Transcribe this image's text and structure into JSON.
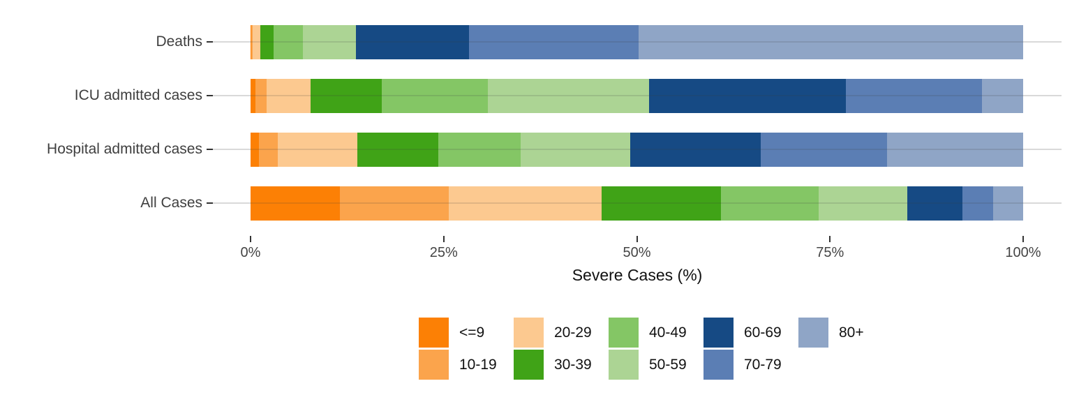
{
  "chart_data": {
    "type": "bar",
    "orientation": "horizontal",
    "stacked": true,
    "stack_total": 100,
    "title": "",
    "xlabel": "Severe Cases (%)",
    "ylabel": "",
    "xlim": [
      0,
      100
    ],
    "x_tick_labels": [
      "0%",
      "25%",
      "50%",
      "75%",
      "100%"
    ],
    "x_tick_values": [
      0,
      25,
      50,
      75,
      100
    ],
    "grid": "horizontal-category-lines",
    "legend_position": "bottom",
    "categories": [
      "Deaths",
      "ICU admitted cases",
      "Hospital admitted cases",
      "All Cases"
    ],
    "series": [
      {
        "name": "<=9",
        "color": "#FC8005",
        "values": [
          0.1,
          0.6,
          1.1,
          11.6
        ]
      },
      {
        "name": "10-19",
        "color": "#FBA44C",
        "values": [
          0.2,
          1.5,
          2.4,
          14.1
        ]
      },
      {
        "name": "20-29",
        "color": "#FCC990",
        "values": [
          1.0,
          5.7,
          10.3,
          19.7
        ]
      },
      {
        "name": "30-39",
        "color": "#40A317",
        "values": [
          1.7,
          9.2,
          10.5,
          15.5
        ]
      },
      {
        "name": "40-49",
        "color": "#84C665",
        "values": [
          3.8,
          13.7,
          10.7,
          12.6
        ]
      },
      {
        "name": "50-59",
        "color": "#ACD494",
        "values": [
          6.8,
          20.9,
          14.1,
          11.5
        ]
      },
      {
        "name": "60-69",
        "color": "#164A84",
        "values": [
          14.7,
          25.5,
          16.9,
          7.1
        ]
      },
      {
        "name": "70-79",
        "color": "#5B7EB4",
        "values": [
          21.9,
          17.6,
          16.4,
          4.0
        ]
      },
      {
        "name": "80+",
        "color": "#8FA5C6",
        "values": [
          49.8,
          5.3,
          17.6,
          3.9
        ]
      }
    ]
  },
  "layout_colors": {
    "background": "#ffffff",
    "gridline": "#d9d9d9",
    "axis_text": "#444444",
    "category_text": "#3f3f3f",
    "tick_mark": "#333333",
    "title_text": "#111111"
  }
}
